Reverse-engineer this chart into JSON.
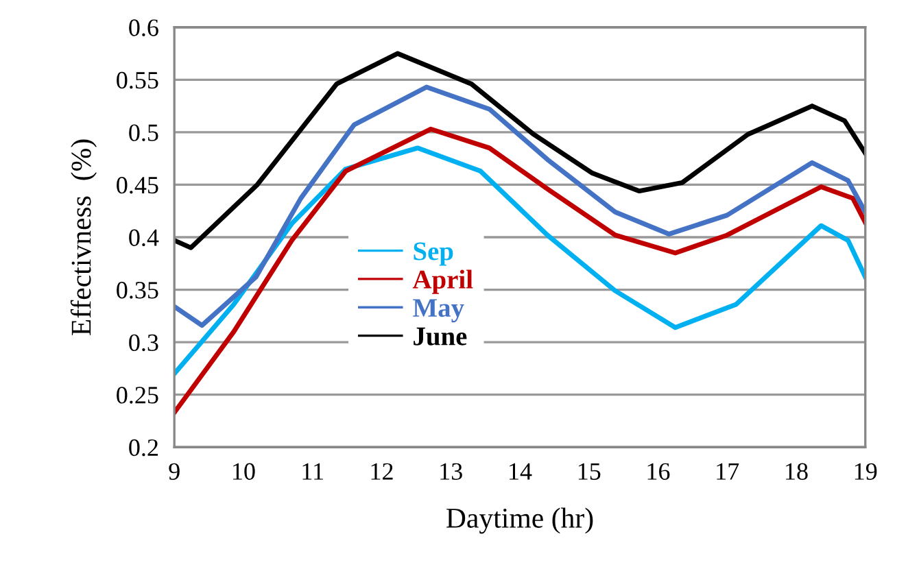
{
  "chart_data": {
    "type": "line",
    "xlabel": "Daytime (hr)",
    "ylabel": "Effectivness  (%)",
    "xlim": [
      9,
      19
    ],
    "xticks": [
      9,
      10,
      11,
      12,
      13,
      14,
      15,
      16,
      17,
      18,
      19
    ],
    "ylim": [
      0.2,
      0.6
    ],
    "yticks": [
      0.2,
      0.25,
      0.3,
      0.35,
      0.4,
      0.45,
      0.5,
      0.55,
      0.6
    ],
    "grid": "y",
    "legend": "center",
    "marker": "none",
    "line_style": "solid",
    "series": [
      {
        "name": "Sep",
        "color": "#00b0f0",
        "x": [
          9,
          9.86,
          10.7,
          11.48,
          12.52,
          13.43,
          14.4,
          15.38,
          16.25,
          17.13,
          18.36,
          18.75,
          19
        ],
        "values": [
          0.27,
          0.336,
          0.413,
          0.465,
          0.485,
          0.463,
          0.402,
          0.349,
          0.314,
          0.336,
          0.411,
          0.397,
          0.362
        ]
      },
      {
        "name": "April",
        "color": "#c00000",
        "x": [
          9,
          9.86,
          10.7,
          11.48,
          12.71,
          13.56,
          14.4,
          15.38,
          16.25,
          17,
          18.36,
          18.82,
          19
        ],
        "values": [
          0.233,
          0.31,
          0.397,
          0.463,
          0.503,
          0.485,
          0.446,
          0.402,
          0.385,
          0.402,
          0.448,
          0.437,
          0.414
        ]
      },
      {
        "name": "May",
        "color": "#4472c4",
        "x": [
          9,
          9.4,
          10.18,
          10.83,
          11.6,
          12.65,
          13.56,
          14.4,
          15.38,
          16.16,
          17,
          18.23,
          18.75,
          19
        ],
        "values": [
          0.334,
          0.316,
          0.362,
          0.437,
          0.507,
          0.543,
          0.522,
          0.474,
          0.424,
          0.403,
          0.421,
          0.471,
          0.454,
          0.424
        ]
      },
      {
        "name": "June",
        "color": "#000000",
        "x": [
          9,
          9.24,
          10.2,
          11.35,
          12.23,
          13.3,
          14.2,
          15.05,
          15.73,
          16.35,
          17.3,
          18.23,
          18.7,
          19
        ],
        "values": [
          0.397,
          0.39,
          0.45,
          0.546,
          0.575,
          0.546,
          0.498,
          0.461,
          0.444,
          0.452,
          0.498,
          0.525,
          0.511,
          0.48
        ]
      }
    ]
  }
}
